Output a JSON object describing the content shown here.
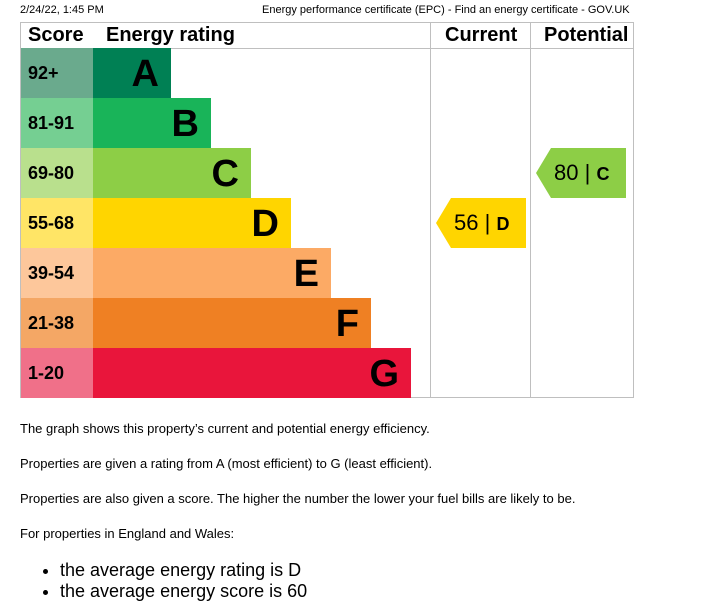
{
  "header": {
    "timestamp": "2/24/22, 1:45 PM",
    "page_title": "Energy performance certificate (EPC) - Find an energy certificate - GOV.UK"
  },
  "chart_data": {
    "type": "table",
    "columns": [
      "Score",
      "Energy rating",
      "Current",
      "Potential"
    ],
    "bands": [
      {
        "score": "92+",
        "rating": "A",
        "color": "#008054",
        "score_color": "#6aaa8d"
      },
      {
        "score": "81-91",
        "rating": "B",
        "color": "#19b459",
        "score_color": "#75cf92"
      },
      {
        "score": "69-80",
        "rating": "C",
        "color": "#8dce46",
        "score_color": "#b9e08d"
      },
      {
        "score": "55-68",
        "rating": "D",
        "color": "#ffd500",
        "score_color": "#ffe566"
      },
      {
        "score": "39-54",
        "rating": "E",
        "color": "#fcaa65",
        "score_color": "#fdc79b"
      },
      {
        "score": "21-38",
        "rating": "F",
        "color": "#ef8023",
        "score_color": "#f4a765"
      },
      {
        "score": "1-20",
        "rating": "G",
        "color": "#e9153b",
        "score_color": "#f07089"
      }
    ],
    "current": {
      "score": "56",
      "rating": "D",
      "color": "#ffd500"
    },
    "potential": {
      "score": "80",
      "rating": "C",
      "color": "#8dce46"
    }
  },
  "text": {
    "p1": "The graph shows this property’s current and potential energy efficiency.",
    "p2": "Properties are given a rating from A (most efficient) to G (least efficient).",
    "p3": "Properties are also given a score. The higher the number the lower your fuel bills are likely to be.",
    "p4": "For properties in England and Wales:",
    "bullets": [
      "the average energy rating is D",
      "the average energy score is 60"
    ]
  }
}
